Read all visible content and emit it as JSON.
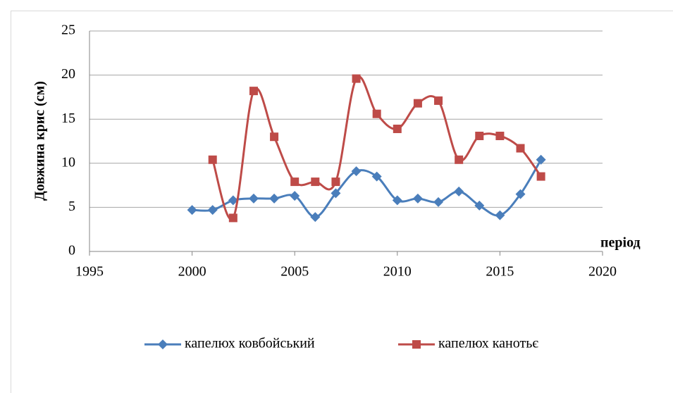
{
  "chart_data": {
    "type": "line",
    "y_label": "Довжина крис (см)",
    "x_label": "період",
    "xlim": [
      1995,
      2020
    ],
    "xticks": [
      1995,
      2000,
      2005,
      2010,
      2015,
      2020
    ],
    "ylim": [
      0,
      25
    ],
    "yticks": [
      0,
      5,
      10,
      15,
      20,
      25
    ],
    "grid": true,
    "smooth": true,
    "legend": "bottom",
    "series": [
      {
        "name": "капелюх ковбойський",
        "color": "#4a7ebb",
        "marker": "diamond",
        "x": [
          2000,
          2001,
          2002,
          2003,
          2004,
          2005,
          2006,
          2007,
          2008,
          2009,
          2010,
          2011,
          2012,
          2013,
          2014,
          2015,
          2016,
          2017
        ],
        "values": [
          4.7,
          4.7,
          5.8,
          6.0,
          6.0,
          6.3,
          3.9,
          6.6,
          9.1,
          8.5,
          5.8,
          6.0,
          5.6,
          6.8,
          5.2,
          4.1,
          6.5,
          10.4
        ]
      },
      {
        "name": "капелюх канотьє",
        "color": "#be4b48",
        "marker": "square",
        "x": [
          2001,
          2002,
          2003,
          2004,
          2005,
          2006,
          2007,
          2008,
          2009,
          2010,
          2011,
          2012,
          2013,
          2014,
          2015,
          2016,
          2017
        ],
        "values": [
          10.4,
          3.8,
          18.2,
          13.0,
          7.9,
          7.9,
          7.9,
          19.6,
          15.6,
          13.9,
          16.8,
          17.1,
          10.4,
          13.1,
          13.1,
          11.7,
          8.5
        ]
      }
    ]
  }
}
